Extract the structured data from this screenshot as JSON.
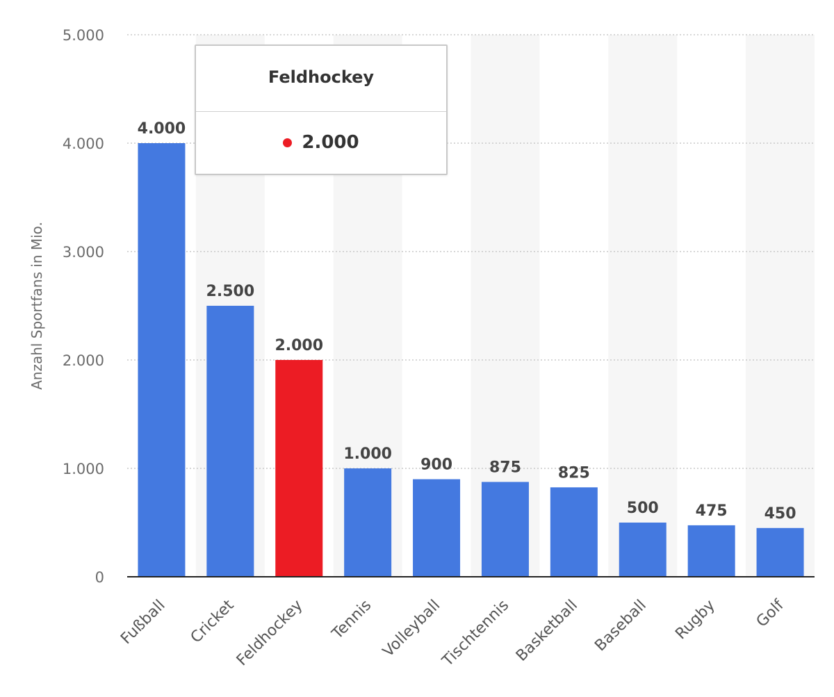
{
  "chart_data": {
    "type": "bar",
    "ylabel": "Anzahl Sportfans in Mio.",
    "ylim": [
      0,
      5000
    ],
    "yticks": [
      {
        "value": 0,
        "label": "0"
      },
      {
        "value": 1000,
        "label": "1.000"
      },
      {
        "value": 2000,
        "label": "2.000"
      },
      {
        "value": 3000,
        "label": "3.000"
      },
      {
        "value": 4000,
        "label": "4.000"
      },
      {
        "value": 5000,
        "label": "5.000"
      }
    ],
    "categories": [
      "Fußball",
      "Cricket",
      "Feldhockey",
      "Tennis",
      "Volleyball",
      "Tischtennis",
      "Basketball",
      "Baseball",
      "Rugby",
      "Golf"
    ],
    "values": [
      4000,
      2500,
      2000,
      1000,
      900,
      875,
      825,
      500,
      475,
      450
    ],
    "value_labels": [
      "4.000",
      "2.500",
      "2.000",
      "1.000",
      "900",
      "875",
      "825",
      "500",
      "475",
      "450"
    ],
    "highlighted_index": 2,
    "grid": true,
    "colors": {
      "bar": "#4479e0",
      "highlight": "#ec1c24",
      "band": "#f6f6f6",
      "grid": "#c8c8c8",
      "axis": "#222222"
    }
  },
  "tooltip": {
    "title": "Feldhockey",
    "value": "2.000",
    "dot_color": "#ec1c24"
  }
}
